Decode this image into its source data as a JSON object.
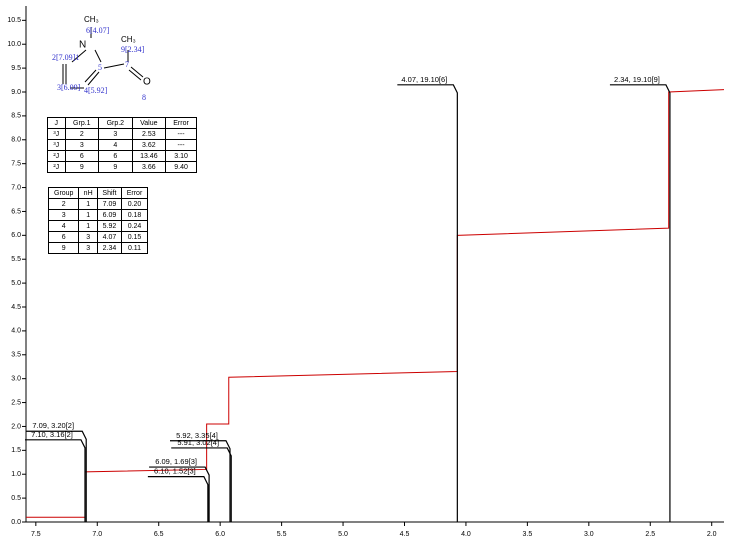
{
  "chart_data": {
    "type": "nmr",
    "xlim": [
      7.58,
      1.9
    ],
    "xticks": [
      7.5,
      {
        "value": 7,
        "label": "7.0"
      },
      6.5,
      {
        "value": 6,
        "label": "6.0"
      },
      5.5,
      {
        "value": 5,
        "label": "5.0"
      },
      4.5,
      {
        "value": 4,
        "label": "4.0"
      },
      3.5,
      {
        "value": 3,
        "label": "3.0"
      },
      2.5,
      {
        "value": 2,
        "label": "2.0"
      }
    ],
    "ylim": [
      0,
      10.8
    ],
    "yticks": [
      {
        "value": 0,
        "label": "0.0"
      },
      0.5,
      {
        "value": 1,
        "label": "1.0"
      },
      1.5,
      {
        "value": 2,
        "label": "2.0"
      },
      2.5,
      {
        "value": 3,
        "label": "3.0"
      },
      3.5,
      {
        "value": 4,
        "label": "4.0"
      },
      4.5,
      {
        "value": 5,
        "label": "5.0"
      },
      5.5,
      {
        "value": 6,
        "label": "6.0"
      },
      6.5,
      {
        "value": 7,
        "label": "7.0"
      },
      7.5,
      {
        "value": 8,
        "label": "8.0"
      },
      8.5,
      {
        "value": 9,
        "label": "9.0"
      },
      9.5,
      {
        "value": 10,
        "label": "10.0"
      },
      10.5
    ],
    "peaks": {
      "x": [
        7.09,
        7.1,
        6.09,
        6.1,
        5.92,
        5.91,
        4.07,
        2.34
      ],
      "values": [
        1.9,
        1.72,
        1.15,
        0.95,
        1.7,
        1.55,
        9.15,
        9.15
      ],
      "labels": [
        "7.09, 3.20[2]",
        "7.10, 3.16[2]",
        "6.09, 1.69[3]",
        "6.10, 1.52[3]",
        "5.92, 3.35[4]",
        "5.91, 3.02[4]",
        "4.07, 19.10[6]",
        "2.34, 19.10[9]"
      ],
      "color": "#000000",
      "label_color": "#000080"
    },
    "integral": {
      "color": "#cc0000",
      "x": [
        7.58,
        7.1,
        7.1,
        6.11,
        6.11,
        5.93,
        5.93,
        4.07,
        4.07,
        2.35,
        2.35,
        1.9
      ],
      "values": [
        0.1,
        0.1,
        1.05,
        1.1,
        2.05,
        2.05,
        3.03,
        3.15,
        6.0,
        6.15,
        9.0,
        9.05
      ]
    }
  },
  "molecule": {
    "labels": [
      "CH₃",
      "6[4.07]",
      "N",
      "CH₃",
      "9[2.34]",
      "2[7.09]1",
      "5",
      "7",
      "O",
      "8",
      "3[6.09]",
      "4[5.92]"
    ]
  },
  "j_table": {
    "header": [
      "J",
      "Grp.1",
      "Grp.2",
      "Value",
      "Error"
    ],
    "rows": [
      [
        "³J",
        "2",
        "3",
        "2.53",
        "---"
      ],
      [
        "³J",
        "3",
        "4",
        "3.62",
        "---"
      ],
      [
        "²J",
        "6",
        "6",
        "13.46",
        "3.10"
      ],
      [
        "²J",
        "9",
        "9",
        "3.66",
        "9.40"
      ]
    ]
  },
  "group_table": {
    "header": [
      "Group",
      "nH",
      "Shift",
      "Error"
    ],
    "rows": [
      [
        "2",
        "1",
        "7.09",
        "0.20"
      ],
      [
        "3",
        "1",
        "6.09",
        "0.18"
      ],
      [
        "4",
        "1",
        "5.92",
        "0.24"
      ],
      [
        "6",
        "3",
        "4.07",
        "0.15"
      ],
      [
        "9",
        "3",
        "2.34",
        "0.11"
      ]
    ]
  }
}
